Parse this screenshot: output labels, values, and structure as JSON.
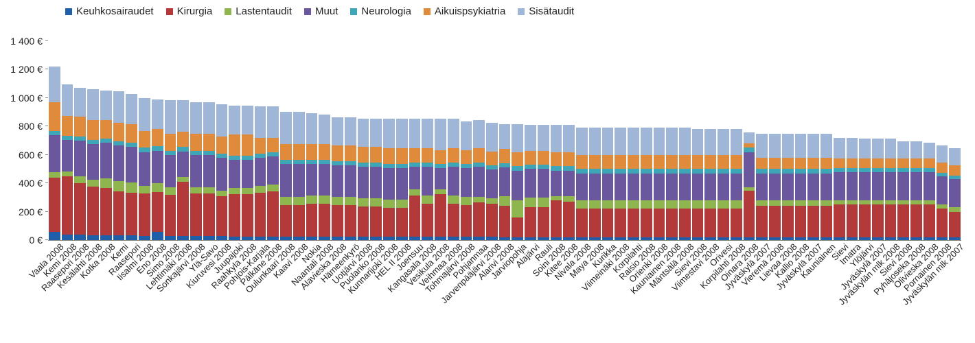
{
  "chart": {
    "type": "stacked-bar",
    "background_color": "#ffffff",
    "text_color": "#222222",
    "font_family": "Arial",
    "legend_fontsize": 15,
    "tick_fontsize": 14,
    "xlabel_fontsize": 13,
    "ylim": [
      0,
      1400
    ],
    "ytick_step": 200,
    "y_suffix": " €",
    "y_thousand_sep": " ",
    "series": [
      {
        "key": "keuhko",
        "label": "Keuhkosairaudet",
        "color": "#1f5fa9"
      },
      {
        "key": "kirurgia",
        "label": "Kirurgia",
        "color": "#b23a3a"
      },
      {
        "key": "lasten",
        "label": "Lastentaudit",
        "color": "#8fb64e"
      },
      {
        "key": "muut",
        "label": "Muut",
        "color": "#6b579d"
      },
      {
        "key": "neuro",
        "label": "Neurologia",
        "color": "#3fa6b8"
      },
      {
        "key": "aikuis",
        "label": "Aikuispsykiatria",
        "color": "#e08a3c"
      },
      {
        "key": "sisa",
        "label": "Sisätaudit",
        "color": "#9fb6d7"
      }
    ],
    "categories": [
      "Vaala 2008",
      "Kemi 2008",
      "Raasepori 2008",
      "Kesälahti 2008",
      "Kotka 2008",
      "Kemi",
      "Raasepori",
      "Iisalmi 2008",
      "Eno 2008",
      "Simo 2008",
      "Lehtimäki 2008",
      "Sonkajärvi 2008",
      "Ylä-Savo",
      "Kiuruvesi 2008",
      "Juupajoki",
      "Raahkyla 2008",
      "Pohjois-Karjala",
      "Pälkäne 2008",
      "Oulunkaari 2008",
      "Kaavi 2008",
      "Nokia",
      "Naantali 2008",
      "Alavieska 2008",
      "Hämeenkyrö",
      "Uotjärvi 2008",
      "Puolanko 2008",
      "Kunnarijoki 2008",
      "HEL II 2008",
      "Joensuu",
      "Kangasala 2008",
      "Vesikula 2008",
      "Veihmaa 2008",
      "Tohmajärvi 2008",
      "Pohjanmaa",
      "Jarvenpääjärvi 2008",
      "Alarivi 2008",
      "Jarviopohja",
      "Alajärvi",
      "Rauli",
      "Soini 2008",
      "Kitee 2008",
      "Nivala 2008",
      "Maya 2008",
      "Kurikka",
      "Viimeinäki 2008",
      "Korpilahti",
      "Raisio 2008",
      "Orienki 2008",
      "Kauniainen 2008",
      "Mäntsälä 2008",
      "Sievi 2008",
      "Viimestavi 2008",
      "Orivesi",
      "Korpilahti 2008",
      "Oinara 2008",
      "Jyväskylä 2007",
      "Vieremä 2008",
      "Lievaa 2008",
      "Kallio 2008",
      "Jyväskylä 2007",
      "Kauniainen",
      "Sievi",
      "Imatra",
      "Ylöjärvi",
      "Jyväskylä 2007",
      "Jyväskylän mlk 2008",
      "Sievi 2008",
      "Pyhäjoseka 2008",
      "Olivieska 2008",
      "Pornainen 2008",
      "Jyväskylän mlk 2007"
    ],
    "data": {
      "keuhko": [
        60,
        40,
        40,
        35,
        35,
        35,
        35,
        30,
        60,
        30,
        30,
        30,
        30,
        30,
        25,
        25,
        25,
        25,
        25,
        25,
        25,
        25,
        25,
        25,
        25,
        25,
        25,
        25,
        25,
        25,
        25,
        25,
        25,
        25,
        25,
        20,
        20,
        20,
        20,
        20,
        20,
        20,
        20,
        20,
        20,
        20,
        20,
        20,
        20,
        20,
        20,
        20,
        20,
        20,
        20,
        20,
        20,
        20,
        20,
        20,
        20,
        20,
        20,
        20,
        20,
        20,
        20,
        20,
        20,
        20,
        20
      ],
      "kirurgia": [
        380,
        410,
        360,
        340,
        330,
        310,
        300,
        300,
        280,
        290,
        380,
        300,
        300,
        280,
        300,
        300,
        310,
        320,
        220,
        220,
        230,
        230,
        220,
        220,
        210,
        210,
        200,
        200,
        290,
        230,
        300,
        230,
        220,
        240,
        230,
        220,
        140,
        210,
        210,
        260,
        250,
        200,
        200,
        200,
        200,
        200,
        200,
        200,
        200,
        200,
        200,
        200,
        200,
        200,
        330,
        220,
        220,
        220,
        220,
        220,
        220,
        230,
        230,
        230,
        230,
        230,
        230,
        230,
        230,
        200,
        180
      ],
      "lasten": [
        40,
        35,
        50,
        50,
        70,
        70,
        70,
        50,
        60,
        50,
        35,
        40,
        40,
        40,
        40,
        40,
        45,
        45,
        60,
        60,
        60,
        60,
        60,
        60,
        60,
        60,
        60,
        60,
        40,
        60,
        30,
        60,
        60,
        40,
        40,
        70,
        120,
        70,
        70,
        30,
        40,
        60,
        60,
        60,
        60,
        60,
        60,
        60,
        60,
        60,
        60,
        60,
        60,
        60,
        20,
        40,
        40,
        40,
        40,
        40,
        40,
        30,
        30,
        30,
        30,
        30,
        30,
        30,
        30,
        30,
        30
      ],
      "muut": [
        260,
        220,
        250,
        250,
        250,
        250,
        250,
        240,
        230,
        230,
        180,
        230,
        230,
        230,
        200,
        200,
        200,
        200,
        230,
        230,
        220,
        220,
        220,
        220,
        220,
        220,
        220,
        220,
        160,
        200,
        150,
        200,
        200,
        210,
        200,
        200,
        210,
        200,
        200,
        180,
        180,
        190,
        190,
        190,
        190,
        190,
        190,
        190,
        190,
        190,
        190,
        190,
        190,
        190,
        250,
        190,
        190,
        190,
        190,
        190,
        190,
        200,
        200,
        200,
        200,
        200,
        200,
        200,
        200,
        200,
        200
      ],
      "neuro": [
        30,
        30,
        30,
        30,
        30,
        30,
        30,
        30,
        30,
        30,
        30,
        30,
        30,
        30,
        30,
        30,
        30,
        30,
        30,
        30,
        30,
        30,
        30,
        30,
        30,
        30,
        30,
        30,
        30,
        30,
        30,
        30,
        30,
        30,
        30,
        30,
        30,
        30,
        30,
        30,
        30,
        30,
        30,
        30,
        30,
        30,
        30,
        30,
        30,
        30,
        30,
        30,
        30,
        30,
        30,
        30,
        30,
        30,
        30,
        30,
        30,
        25,
        25,
        25,
        25,
        25,
        25,
        25,
        25,
        25,
        25
      ],
      "aikuis": [
        200,
        140,
        140,
        140,
        130,
        130,
        130,
        120,
        120,
        120,
        110,
        120,
        120,
        120,
        150,
        150,
        110,
        100,
        110,
        110,
        110,
        110,
        110,
        110,
        110,
        110,
        110,
        110,
        100,
        100,
        100,
        100,
        100,
        100,
        100,
        100,
        100,
        100,
        100,
        100,
        100,
        100,
        100,
        100,
        100,
        100,
        100,
        100,
        100,
        100,
        100,
        100,
        100,
        100,
        30,
        80,
        80,
        80,
        80,
        80,
        80,
        70,
        70,
        70,
        70,
        70,
        70,
        70,
        70,
        70,
        70
      ],
      "sisa": [
        250,
        220,
        200,
        215,
        210,
        225,
        215,
        230,
        210,
        235,
        220,
        220,
        220,
        225,
        200,
        200,
        220,
        220,
        230,
        230,
        220,
        210,
        200,
        200,
        200,
        200,
        210,
        210,
        210,
        210,
        220,
        210,
        200,
        200,
        200,
        175,
        195,
        180,
        180,
        190,
        190,
        190,
        190,
        190,
        190,
        190,
        190,
        190,
        190,
        190,
        180,
        180,
        180,
        180,
        80,
        170,
        170,
        170,
        170,
        170,
        170,
        145,
        145,
        140,
        140,
        140,
        120,
        120,
        110,
        120,
        120
      ]
    }
  }
}
